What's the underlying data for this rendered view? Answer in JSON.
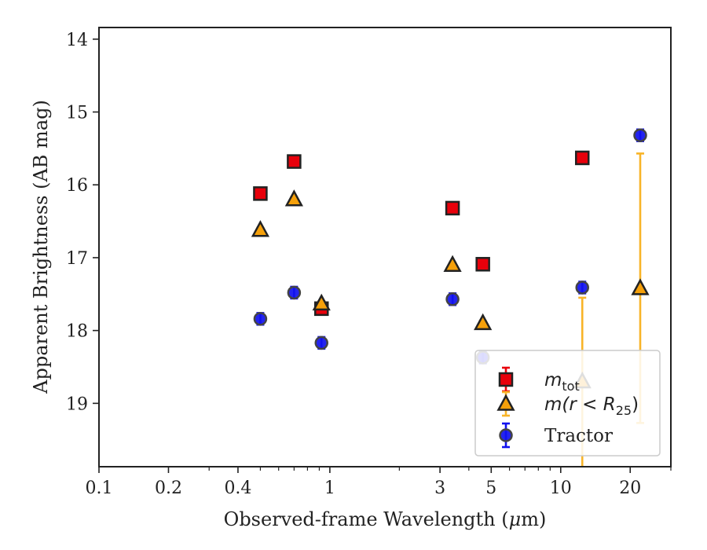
{
  "chart_data": {
    "type": "scatter",
    "title": "",
    "xlabel_prefix": "Observed-frame Wavelength (",
    "xlabel_mu": "μ",
    "xlabel_suffix": "m)",
    "ylabel": "Apparent Brightness (AB mag)",
    "xscale": "log",
    "xlim": [
      0.1,
      30
    ],
    "ylim": [
      19.87,
      13.84
    ],
    "y_inverted": true,
    "grid": false,
    "legend_position": "lower-right",
    "xticks": [
      {
        "value": 0.1,
        "label": "0.1"
      },
      {
        "value": 0.2,
        "label": "0.2"
      },
      {
        "value": 0.4,
        "label": "0.4"
      },
      {
        "value": 1,
        "label": "1"
      },
      {
        "value": 3,
        "label": "3"
      },
      {
        "value": 5,
        "label": "5"
      },
      {
        "value": 10,
        "label": "10"
      },
      {
        "value": 20,
        "label": "20"
      }
    ],
    "yticks": [
      {
        "value": 14,
        "label": "14"
      },
      {
        "value": 15,
        "label": "15"
      },
      {
        "value": 16,
        "label": "16"
      },
      {
        "value": 17,
        "label": "17"
      },
      {
        "value": 18,
        "label": "18"
      },
      {
        "value": 19,
        "label": "19"
      }
    ],
    "series": [
      {
        "key": "mtot",
        "marker": "square",
        "color": "#e8000b",
        "edge": "#222222",
        "errcolor": "#e8000b",
        "legend_main": "m",
        "legend_sub": "tot",
        "points": [
          {
            "x": 0.5,
            "y": 16.12,
            "err": 0.05
          },
          {
            "x": 0.7,
            "y": 15.68,
            "err": 0.05
          },
          {
            "x": 0.92,
            "y": 17.7,
            "err": 0.05
          },
          {
            "x": 3.4,
            "y": 16.32,
            "err": 0.05
          },
          {
            "x": 4.6,
            "y": 17.09,
            "err": 0.05
          },
          {
            "x": 12.4,
            "y": 15.63,
            "err": 0.05
          }
        ]
      },
      {
        "key": "mr25",
        "marker": "triangle",
        "color": "#f5a00a",
        "edge": "#222222",
        "errcolor": "#f8b428",
        "legend_main": "m",
        "legend_open": "(r < R",
        "legend_sub": "25",
        "legend_close": ")",
        "points": [
          {
            "x": 0.5,
            "y": 16.62,
            "err": 0.03
          },
          {
            "x": 0.7,
            "y": 16.2,
            "err": 0.03
          },
          {
            "x": 0.92,
            "y": 17.63,
            "err": 0.03
          },
          {
            "x": 3.4,
            "y": 17.1,
            "err": 0.03
          },
          {
            "x": 4.6,
            "y": 17.9,
            "err": 0.03
          },
          {
            "x": 12.4,
            "y": 18.7,
            "err_low": 1.3,
            "err_high": 1.15
          },
          {
            "x": 22.1,
            "y": 17.42,
            "err_low": 1.85,
            "err_high": 1.85
          }
        ]
      },
      {
        "key": "tractor",
        "marker": "circle",
        "color": "#1111ee",
        "edge": "#444444",
        "errcolor": "#1111ee",
        "legend_main": "Tractor",
        "points": [
          {
            "x": 0.5,
            "y": 17.84,
            "err": 0.08
          },
          {
            "x": 0.7,
            "y": 17.48,
            "err": 0.08
          },
          {
            "x": 0.92,
            "y": 18.17,
            "err": 0.08
          },
          {
            "x": 3.4,
            "y": 17.57,
            "err": 0.08
          },
          {
            "x": 4.6,
            "y": 18.37,
            "err": 0.08
          },
          {
            "x": 12.4,
            "y": 17.41,
            "err": 0.08
          },
          {
            "x": 22.1,
            "y": 15.32,
            "err": 0.08
          }
        ]
      }
    ]
  }
}
